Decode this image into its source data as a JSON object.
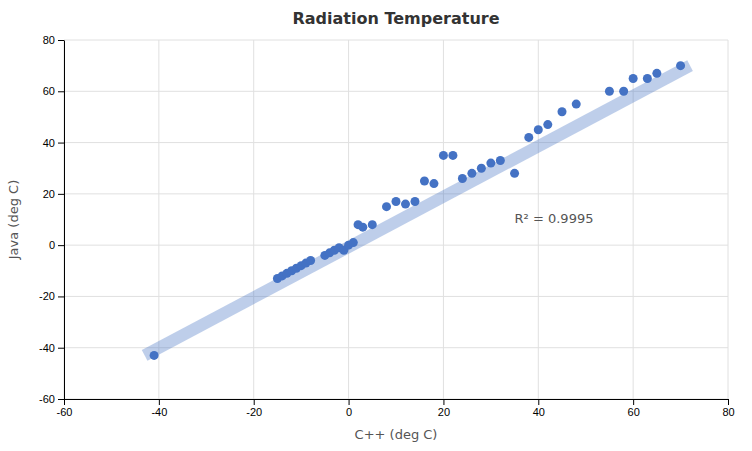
{
  "chart_data": {
    "type": "scatter",
    "title": "Radiation Temperature",
    "xlabel": "C++ (deg C)",
    "ylabel": "Java (deg C)",
    "xlim": [
      -60,
      80
    ],
    "ylim": [
      -60,
      80
    ],
    "xticks": [
      -60,
      -40,
      -20,
      0,
      20,
      40,
      60,
      80
    ],
    "yticks": [
      -60,
      -40,
      -20,
      0,
      20,
      40,
      60,
      80
    ],
    "grid": true,
    "series": [
      {
        "type": "scatter",
        "color": "#4472C4",
        "x": [
          -41,
          -15,
          -14,
          -13,
          -12,
          -11,
          -10,
          -9,
          -8,
          -5,
          -4,
          -3,
          -2,
          -1,
          0,
          1,
          2,
          3,
          5,
          8,
          10,
          12,
          14,
          16,
          18,
          20,
          22,
          24,
          26,
          28,
          30,
          32,
          35,
          38,
          40,
          42,
          45,
          48,
          55,
          58,
          60,
          63,
          65,
          70
        ],
        "values": [
          -43,
          -13,
          -12,
          -11,
          -10,
          -9,
          -8,
          -7,
          -6,
          -4,
          -3,
          -2,
          -1,
          -2,
          0,
          1,
          8,
          7,
          8,
          15,
          17,
          16,
          17,
          25,
          24,
          35,
          35,
          26,
          28,
          30,
          32,
          33,
          28,
          42,
          45,
          47,
          52,
          55,
          60,
          60,
          65,
          65,
          67,
          70
        ]
      },
      {
        "type": "line",
        "color": "#4472C4",
        "x": [
          -43,
          72
        ],
        "values": [
          -43,
          70
        ]
      }
    ],
    "annotations": [
      {
        "text": "R² = 0.9995",
        "x": 35,
        "y": 10
      }
    ]
  }
}
